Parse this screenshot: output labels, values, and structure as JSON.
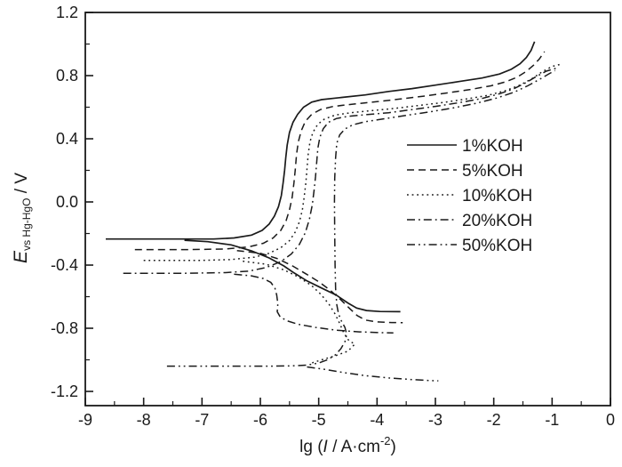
{
  "figure": {
    "kind": "polarization-curves",
    "background": "#ffffff",
    "line_color": "#1a1a1a"
  },
  "chart_data": {
    "type": "line",
    "title": "",
    "xlabel": "lg (I / A·cm⁻²)",
    "ylabel": "E vs Hg-HgO / V",
    "xlim": [
      -9,
      0
    ],
    "ylim": [
      -1.29,
      1.2
    ],
    "grid": false,
    "legend_position": "right-center",
    "x_ticks": {
      "majors": [
        -9,
        -8,
        -7,
        -6,
        -5,
        -4,
        -3,
        -2,
        -1,
        0
      ],
      "labels": [
        "-9",
        "-8",
        "-7",
        "-6",
        "-5",
        "-4",
        "-3",
        "-2",
        "-1",
        "0"
      ],
      "minors": [
        -8.5,
        -7.5,
        -6.5,
        -5.5,
        -4.5,
        -3.5,
        -2.5,
        -1.5,
        -0.5
      ]
    },
    "y_ticks": {
      "majors": [
        1.2,
        0.8,
        0.4,
        0.0,
        -0.4,
        -0.8,
        -1.2
      ],
      "labels": [
        "1.2",
        "0.8",
        "0.4",
        "0.0",
        "-0.4",
        "-0.8",
        "-1.2"
      ],
      "minors": [
        1.0,
        0.6,
        0.2,
        -0.2,
        -0.6,
        -1.0
      ]
    },
    "x_label_parts": {
      "prefix": "lg (",
      "symbol": "I",
      "mid": " / A·cm",
      "sup": "-2",
      "suffix": ")"
    },
    "y_label_parts": {
      "symbol": "E",
      "sub": "vs Hg-HgO",
      "suffix": " / V"
    },
    "series": [
      {
        "name": "1%KOH",
        "style": "solid",
        "branches": [
          [
            [
              -8.65,
              -0.235
            ],
            [
              -7.5,
              -0.235
            ],
            [
              -6.8,
              -0.235
            ],
            [
              -6.45,
              -0.228
            ],
            [
              -6.15,
              -0.21
            ],
            [
              -5.97,
              -0.18
            ],
            [
              -5.85,
              -0.14
            ],
            [
              -5.76,
              -0.09
            ],
            [
              -5.69,
              -0.03
            ],
            [
              -5.64,
              0.04
            ],
            [
              -5.61,
              0.12
            ],
            [
              -5.585,
              0.2
            ],
            [
              -5.565,
              0.28
            ],
            [
              -5.54,
              0.36
            ],
            [
              -5.5,
              0.44
            ],
            [
              -5.44,
              0.505
            ],
            [
              -5.36,
              0.555
            ],
            [
              -5.26,
              0.6
            ],
            [
              -5.12,
              0.632
            ],
            [
              -4.95,
              0.648
            ],
            [
              -4.6,
              0.662
            ],
            [
              -4.2,
              0.678
            ],
            [
              -3.8,
              0.7
            ],
            [
              -3.4,
              0.718
            ],
            [
              -3.0,
              0.74
            ],
            [
              -2.6,
              0.762
            ],
            [
              -2.2,
              0.785
            ],
            [
              -1.9,
              0.81
            ],
            [
              -1.7,
              0.84
            ],
            [
              -1.55,
              0.875
            ],
            [
              -1.44,
              0.915
            ],
            [
              -1.36,
              0.96
            ],
            [
              -1.3,
              1.015
            ]
          ],
          [
            [
              -7.3,
              -0.243
            ],
            [
              -6.9,
              -0.252
            ],
            [
              -6.5,
              -0.272
            ],
            [
              -6.15,
              -0.31
            ],
            [
              -5.85,
              -0.355
            ],
            [
              -5.6,
              -0.405
            ],
            [
              -5.42,
              -0.45
            ],
            [
              -5.2,
              -0.5
            ],
            [
              -4.95,
              -0.545
            ],
            [
              -4.7,
              -0.59
            ],
            [
              -4.5,
              -0.64
            ],
            [
              -4.35,
              -0.672
            ],
            [
              -4.18,
              -0.688
            ],
            [
              -3.95,
              -0.694
            ],
            [
              -3.6,
              -0.695
            ]
          ]
        ]
      },
      {
        "name": "5%KOH",
        "style": "dashed",
        "branches": [
          [
            [
              -8.15,
              -0.302
            ],
            [
              -7.2,
              -0.302
            ],
            [
              -6.6,
              -0.298
            ],
            [
              -6.2,
              -0.285
            ],
            [
              -5.95,
              -0.262
            ],
            [
              -5.78,
              -0.228
            ],
            [
              -5.65,
              -0.18
            ],
            [
              -5.56,
              -0.12
            ],
            [
              -5.5,
              -0.05
            ],
            [
              -5.455,
              0.03
            ],
            [
              -5.425,
              0.12
            ],
            [
              -5.4,
              0.21
            ],
            [
              -5.38,
              0.3
            ],
            [
              -5.35,
              0.38
            ],
            [
              -5.3,
              0.45
            ],
            [
              -5.23,
              0.51
            ],
            [
              -5.12,
              0.555
            ],
            [
              -4.97,
              0.585
            ],
            [
              -4.75,
              0.605
            ],
            [
              -4.4,
              0.62
            ],
            [
              -4.0,
              0.635
            ],
            [
              -3.6,
              0.652
            ],
            [
              -3.2,
              0.67
            ],
            [
              -2.8,
              0.69
            ],
            [
              -2.4,
              0.712
            ],
            [
              -2.05,
              0.735
            ],
            [
              -1.8,
              0.76
            ],
            [
              -1.6,
              0.79
            ],
            [
              -1.45,
              0.825
            ],
            [
              -1.32,
              0.865
            ],
            [
              -1.22,
              0.905
            ],
            [
              -1.13,
              0.952
            ]
          ],
          [
            [
              -6.4,
              -0.308
            ],
            [
              -6.0,
              -0.325
            ],
            [
              -5.7,
              -0.36
            ],
            [
              -5.45,
              -0.405
            ],
            [
              -5.22,
              -0.455
            ],
            [
              -5.0,
              -0.505
            ],
            [
              -4.8,
              -0.56
            ],
            [
              -4.62,
              -0.62
            ],
            [
              -4.47,
              -0.675
            ],
            [
              -4.34,
              -0.72
            ],
            [
              -4.2,
              -0.748
            ],
            [
              -4.0,
              -0.76
            ],
            [
              -3.75,
              -0.764
            ],
            [
              -3.56,
              -0.765
            ]
          ]
        ]
      },
      {
        "name": "10%KOH",
        "style": "dotted",
        "branches": [
          [
            [
              -8.0,
              -0.37
            ],
            [
              -7.0,
              -0.37
            ],
            [
              -6.5,
              -0.365
            ],
            [
              -6.1,
              -0.35
            ],
            [
              -5.85,
              -0.325
            ],
            [
              -5.65,
              -0.29
            ],
            [
              -5.5,
              -0.245
            ],
            [
              -5.4,
              -0.19
            ],
            [
              -5.33,
              -0.125
            ],
            [
              -5.28,
              -0.05
            ],
            [
              -5.25,
              0.03
            ],
            [
              -5.22,
              0.12
            ],
            [
              -5.2,
              0.21
            ],
            [
              -5.18,
              0.3
            ],
            [
              -5.15,
              0.38
            ],
            [
              -5.1,
              0.44
            ],
            [
              -5.02,
              0.49
            ],
            [
              -4.9,
              0.525
            ],
            [
              -4.72,
              0.55
            ],
            [
              -4.45,
              0.565
            ],
            [
              -4.1,
              0.578
            ],
            [
              -3.7,
              0.592
            ],
            [
              -3.3,
              0.61
            ],
            [
              -2.9,
              0.628
            ],
            [
              -2.5,
              0.65
            ],
            [
              -2.1,
              0.675
            ],
            [
              -1.8,
              0.705
            ],
            [
              -1.55,
              0.74
            ],
            [
              -1.35,
              0.78
            ],
            [
              -1.18,
              0.822
            ],
            [
              -1.0,
              0.858
            ],
            [
              -0.82,
              0.875
            ]
          ],
          [
            [
              -6.3,
              -0.375
            ],
            [
              -5.9,
              -0.395
            ],
            [
              -5.6,
              -0.43
            ],
            [
              -5.35,
              -0.475
            ],
            [
              -5.12,
              -0.53
            ],
            [
              -4.95,
              -0.59
            ],
            [
              -4.82,
              -0.65
            ],
            [
              -4.72,
              -0.71
            ],
            [
              -4.64,
              -0.77
            ],
            [
              -4.57,
              -0.83
            ],
            [
              -4.48,
              -0.88
            ],
            [
              -4.38,
              -0.9
            ],
            [
              -4.5,
              -0.945
            ],
            [
              -4.72,
              -0.975
            ],
            [
              -4.95,
              -1.0
            ],
            [
              -5.12,
              -1.02
            ]
          ]
        ]
      },
      {
        "name": "20%KOH",
        "style": "dashdot",
        "branches": [
          [
            [
              -8.35,
              -0.452
            ],
            [
              -7.3,
              -0.452
            ],
            [
              -6.6,
              -0.448
            ],
            [
              -6.2,
              -0.438
            ],
            [
              -5.9,
              -0.415
            ],
            [
              -5.65,
              -0.378
            ],
            [
              -5.47,
              -0.33
            ],
            [
              -5.33,
              -0.268
            ],
            [
              -5.23,
              -0.195
            ],
            [
              -5.16,
              -0.11
            ],
            [
              -5.11,
              -0.02
            ],
            [
              -5.08,
              0.07
            ],
            [
              -5.055,
              0.16
            ],
            [
              -5.035,
              0.25
            ],
            [
              -5.015,
              0.34
            ],
            [
              -4.98,
              0.41
            ],
            [
              -4.92,
              0.465
            ],
            [
              -4.83,
              0.505
            ],
            [
              -4.7,
              0.528
            ],
            [
              -4.5,
              0.542
            ],
            [
              -4.2,
              0.552
            ],
            [
              -3.8,
              0.565
            ],
            [
              -3.4,
              0.585
            ],
            [
              -3.0,
              0.605
            ],
            [
              -2.6,
              0.628
            ],
            [
              -2.2,
              0.655
            ],
            [
              -1.9,
              0.685
            ],
            [
              -1.65,
              0.718
            ],
            [
              -1.45,
              0.755
            ],
            [
              -1.28,
              0.792
            ],
            [
              -1.1,
              0.828
            ],
            [
              -0.9,
              0.85
            ]
          ],
          [
            [
              -6.45,
              -0.458
            ],
            [
              -6.15,
              -0.468
            ],
            [
              -5.95,
              -0.485
            ],
            [
              -5.82,
              -0.51
            ],
            [
              -5.75,
              -0.545
            ],
            [
              -5.72,
              -0.59
            ],
            [
              -5.7,
              -0.645
            ],
            [
              -5.71,
              -0.695
            ],
            [
              -5.66,
              -0.728
            ],
            [
              -5.55,
              -0.752
            ],
            [
              -5.35,
              -0.775
            ],
            [
              -5.05,
              -0.795
            ],
            [
              -4.7,
              -0.812
            ],
            [
              -4.3,
              -0.823
            ],
            [
              -3.9,
              -0.828
            ],
            [
              -3.72,
              -0.829
            ]
          ]
        ]
      },
      {
        "name": "50%KOH",
        "style": "dashdotdot",
        "branches": [
          [
            [
              -7.6,
              -1.04
            ],
            [
              -6.5,
              -1.04
            ],
            [
              -5.8,
              -1.04
            ],
            [
              -5.45,
              -1.038
            ],
            [
              -5.2,
              -1.033
            ],
            [
              -5.0,
              -1.02
            ],
            [
              -4.85,
              -1.0
            ],
            [
              -4.72,
              -0.97
            ],
            [
              -4.62,
              -0.93
            ],
            [
              -4.55,
              -0.885
            ],
            [
              -4.52,
              -0.84
            ],
            [
              -4.55,
              -0.795
            ],
            [
              -4.61,
              -0.755
            ],
            [
              -4.66,
              -0.71
            ],
            [
              -4.69,
              -0.65
            ],
            [
              -4.71,
              -0.55
            ],
            [
              -4.72,
              -0.4
            ],
            [
              -4.725,
              -0.2
            ],
            [
              -4.73,
              0.0
            ],
            [
              -4.725,
              0.15
            ],
            [
              -4.71,
              0.28
            ],
            [
              -4.69,
              0.37
            ],
            [
              -4.64,
              0.425
            ],
            [
              -4.55,
              0.462
            ],
            [
              -4.42,
              0.488
            ],
            [
              -4.2,
              0.508
            ],
            [
              -3.9,
              0.525
            ],
            [
              -3.5,
              0.548
            ],
            [
              -3.1,
              0.57
            ],
            [
              -2.7,
              0.595
            ],
            [
              -2.3,
              0.625
            ],
            [
              -1.95,
              0.658
            ],
            [
              -1.65,
              0.695
            ],
            [
              -1.42,
              0.735
            ],
            [
              -1.22,
              0.775
            ],
            [
              -1.05,
              0.812
            ],
            [
              -0.95,
              0.832
            ]
          ],
          [
            [
              -5.2,
              -1.045
            ],
            [
              -4.9,
              -1.06
            ],
            [
              -4.55,
              -1.082
            ],
            [
              -4.2,
              -1.1
            ],
            [
              -3.8,
              -1.115
            ],
            [
              -3.4,
              -1.125
            ],
            [
              -3.1,
              -1.131
            ],
            [
              -2.95,
              -1.133
            ]
          ]
        ]
      }
    ],
    "legend": {
      "entries": [
        "1%KOH",
        "5%KOH",
        "10%KOH",
        "20%KOH",
        "50%KOH"
      ],
      "styles": [
        "solid",
        "dashed",
        "dotted",
        "dashdot",
        "dashdotdot"
      ]
    }
  }
}
